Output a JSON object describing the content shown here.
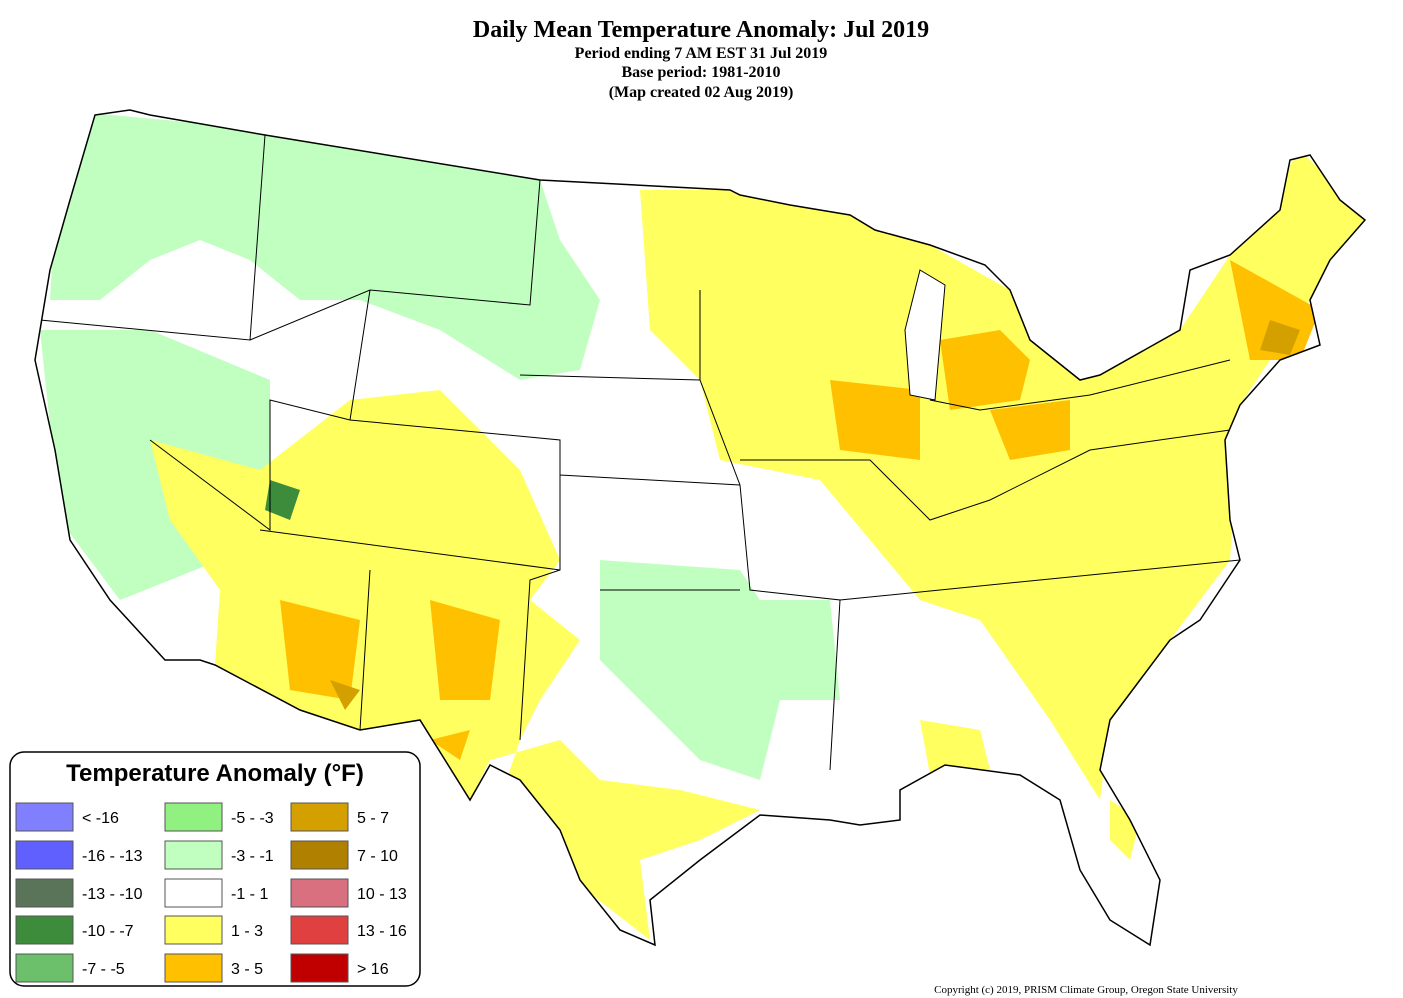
{
  "title": "Daily Mean Temperature Anomaly: Jul 2019",
  "subtitle_lines": [
    "Period ending 7 AM EST 31 Jul 2019",
    "Base period: 1981-2010",
    "(Map created 02 Aug 2019)"
  ],
  "legend": {
    "title": "Temperature Anomaly (°F)",
    "items": [
      {
        "label": "< -16",
        "color": "#8080ff"
      },
      {
        "label": "-16 - -13",
        "color": "#6060ff"
      },
      {
        "label": "-13 - -10",
        "color": "#5a745a"
      },
      {
        "label": "-10 - -7",
        "color": "#3c8c3c"
      },
      {
        "label": "-7 - -5",
        "color": "#6cc06c"
      },
      {
        "label": "-5 - -3",
        "color": "#90f080"
      },
      {
        "label": "-3 - -1",
        "color": "#c0ffc0"
      },
      {
        "label": "-1 - 1",
        "color": "#ffffff"
      },
      {
        "label": "1 - 3",
        "color": "#ffff60"
      },
      {
        "label": "3 - 5",
        "color": "#ffc000"
      },
      {
        "label": "5 - 7",
        "color": "#d4a000"
      },
      {
        "label": "7 - 10",
        "color": "#b08000"
      },
      {
        "label": "10 - 13",
        "color": "#d87080"
      },
      {
        "label": "13 - 16",
        "color": "#e04040"
      },
      {
        "label": "> 16",
        "color": "#c00000"
      }
    ]
  },
  "copyright": "Copyright (c) 2019, PRISM Climate Group, Oregon State University"
}
